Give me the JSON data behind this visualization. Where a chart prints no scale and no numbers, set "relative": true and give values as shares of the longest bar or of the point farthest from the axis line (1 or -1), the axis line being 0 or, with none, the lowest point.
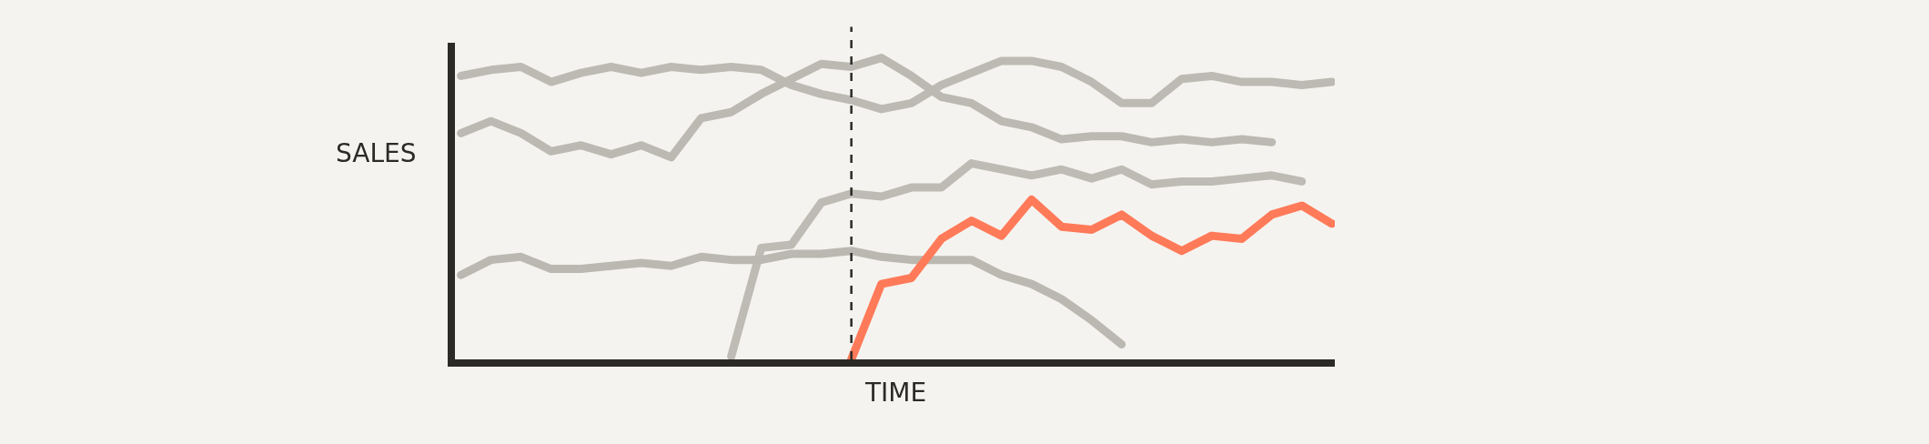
{
  "chart_data": {
    "type": "line",
    "xlabel": "TIME",
    "ylabel": "SALES",
    "relative": true,
    "marker": "none",
    "line_style": "solid",
    "categories": [
      null,
      null,
      null,
      null,
      null,
      null,
      null,
      null,
      null,
      null,
      null,
      null,
      null,
      null,
      null,
      null,
      null,
      null,
      null,
      null,
      null,
      null,
      null,
      null,
      null,
      null,
      null,
      null,
      null,
      null
    ],
    "series": [
      {
        "color": "#bcbab2",
        "values": [
          0.94,
          0.96,
          0.97,
          0.92,
          0.95,
          0.97,
          0.95,
          0.97,
          0.96,
          0.97,
          0.96,
          0.91,
          0.88,
          0.86,
          0.83,
          0.85,
          0.91,
          0.95,
          0.99,
          0.99,
          0.97,
          0.92,
          0.85,
          0.85,
          0.93,
          0.94,
          0.92,
          0.92,
          0.91,
          0.92
        ]
      },
      {
        "color": "#bbb9b1",
        "values": [
          0.75,
          0.79,
          0.75,
          0.69,
          0.71,
          0.68,
          0.71,
          0.67,
          0.8,
          0.82,
          0.88,
          0.93,
          0.98,
          0.97,
          1,
          0.94,
          0.87,
          0.85,
          0.79,
          0.77,
          0.73,
          0.74,
          0.74,
          0.72,
          0.73,
          0.72,
          0.73,
          0.72,
          null,
          null
        ]
      },
      {
        "color": "#bdbbb3",
        "values": [
          null,
          null,
          null,
          null,
          null,
          null,
          null,
          null,
          null,
          0.01,
          0.37,
          0.38,
          0.52,
          0.55,
          0.54,
          0.57,
          0.57,
          0.65,
          0.63,
          0.61,
          0.63,
          0.6,
          0.63,
          0.58,
          0.59,
          0.59,
          0.6,
          0.61,
          0.59,
          null
        ]
      },
      {
        "color": "#bab8b0",
        "values": [
          0.28,
          0.33,
          0.34,
          0.3,
          0.3,
          0.31,
          0.32,
          0.31,
          0.34,
          0.33,
          0.33,
          0.35,
          0.35,
          0.36,
          0.34,
          0.33,
          0.33,
          0.33,
          0.28,
          0.25,
          0.2,
          0.13,
          0.05,
          null,
          null,
          null,
          null,
          null,
          null,
          null
        ]
      },
      {
        "color": "#ff7a59",
        "values": [
          null,
          null,
          null,
          null,
          null,
          null,
          null,
          null,
          null,
          null,
          null,
          null,
          null,
          0.0,
          0.25,
          0.27,
          0.4,
          0.46,
          0.41,
          0.53,
          0.44,
          0.43,
          0.48,
          0.41,
          0.36,
          0.41,
          0.4,
          0.48,
          0.51,
          0.45
        ]
      }
    ]
  }
}
